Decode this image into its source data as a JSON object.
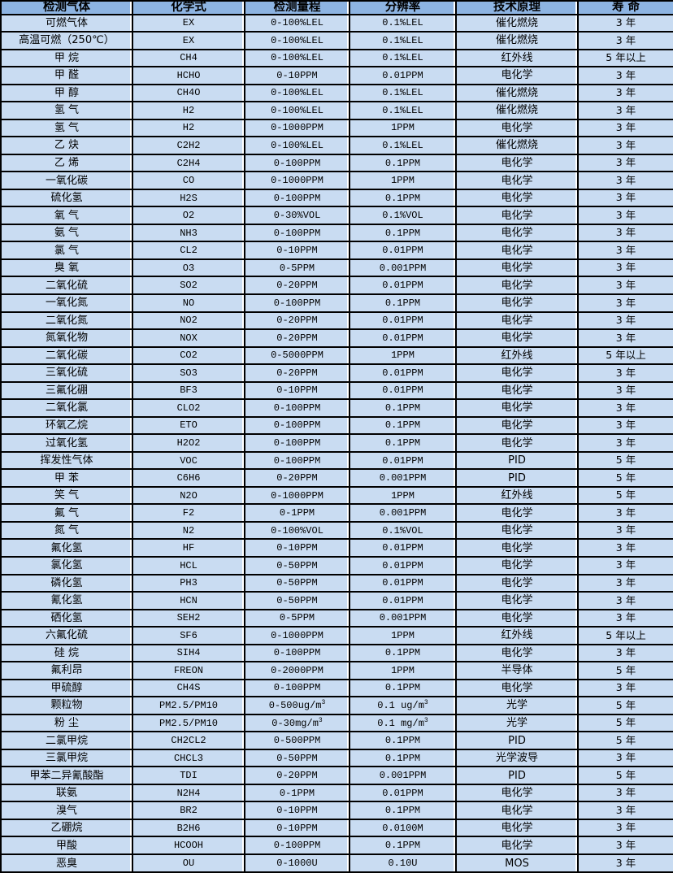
{
  "colors": {
    "header_bg": "#8DB4E2",
    "row_bg": "#C9DCF2",
    "grid_border": "#000000",
    "column_separator": "#FFFFFF",
    "text": "#000000"
  },
  "table": {
    "columns": [
      "检测气体",
      "化学式",
      "检测量程",
      "分辨率",
      "技术原理",
      "寿 命"
    ],
    "column_keys": [
      "gas",
      "formula",
      "range",
      "resolution",
      "principle",
      "lifetime"
    ],
    "rows": [
      [
        "可燃气体",
        "EX",
        "0-100%LEL",
        "0.1%LEL",
        "催化燃烧",
        "3 年"
      ],
      [
        "高温可燃（250℃）",
        "EX",
        "0-100%LEL",
        "0.1%LEL",
        "催化燃烧",
        "3 年"
      ],
      [
        "甲 烷",
        "CH4",
        "0-100%LEL",
        "0.1%LEL",
        "红外线",
        "5 年以上"
      ],
      [
        "甲 醛",
        "HCHO",
        "0-10PPM",
        "0.01PPM",
        "电化学",
        "3 年"
      ],
      [
        "甲 醇",
        "CH4O",
        "0-100%LEL",
        "0.1%LEL",
        "催化燃烧",
        "3 年"
      ],
      [
        "氢 气",
        "H2",
        "0-100%LEL",
        "0.1%LEL",
        "催化燃烧",
        "3 年"
      ],
      [
        "氢 气",
        "H2",
        "0-1000PPM",
        "1PPM",
        "电化学",
        "3 年"
      ],
      [
        "乙 炔",
        "C2H2",
        "0-100%LEL",
        "0.1%LEL",
        "催化燃烧",
        "3 年"
      ],
      [
        "乙 烯",
        "C2H4",
        "0-100PPM",
        "0.1PPM",
        "电化学",
        "3 年"
      ],
      [
        "一氧化碳",
        "CO",
        "0-1000PPM",
        "1PPM",
        "电化学",
        "3 年"
      ],
      [
        "硫化氢",
        "H2S",
        "0-100PPM",
        "0.1PPM",
        "电化学",
        "3 年"
      ],
      [
        "氧 气",
        "O2",
        "0-30%VOL",
        "0.1%VOL",
        "电化学",
        "3 年"
      ],
      [
        "氨 气",
        "NH3",
        "0-100PPM",
        "0.1PPM",
        "电化学",
        "3 年"
      ],
      [
        "氯 气",
        "CL2",
        "0-10PPM",
        "0.01PPM",
        "电化学",
        "3 年"
      ],
      [
        "臭 氧",
        "O3",
        "0-5PPM",
        "0.001PPM",
        "电化学",
        "3 年"
      ],
      [
        "二氧化硫",
        "SO2",
        "0-20PPM",
        "0.01PPM",
        "电化学",
        "3 年"
      ],
      [
        "一氧化氮",
        "NO",
        "0-100PPM",
        "0.1PPM",
        "电化学",
        "3 年"
      ],
      [
        "二氧化氮",
        "NO2",
        "0-20PPM",
        "0.01PPM",
        "电化学",
        "3 年"
      ],
      [
        "氮氧化物",
        "NOX",
        "0-20PPM",
        "0.01PPM",
        "电化学",
        "3 年"
      ],
      [
        "二氧化碳",
        "CO2",
        "0-5000PPM",
        "1PPM",
        "红外线",
        "5 年以上"
      ],
      [
        "三氧化硫",
        "SO3",
        "0-20PPM",
        "0.01PPM",
        "电化学",
        "3 年"
      ],
      [
        "三氟化硼",
        "BF3",
        "0-10PPM",
        "0.01PPM",
        "电化学",
        "3 年"
      ],
      [
        "二氧化氯",
        "CLO2",
        "0-100PPM",
        "0.1PPM",
        "电化学",
        "3 年"
      ],
      [
        "环氧乙烷",
        "ETO",
        "0-100PPM",
        "0.1PPM",
        "电化学",
        "3 年"
      ],
      [
        "过氧化氢",
        "H2O2",
        "0-100PPM",
        "0.1PPM",
        "电化学",
        "3 年"
      ],
      [
        "挥发性气体",
        "VOC",
        "0-100PPM",
        "0.01PPM",
        "PID",
        "5 年"
      ],
      [
        "甲 苯",
        "C6H6",
        "0-20PPM",
        "0.001PPM",
        "PID",
        "5 年"
      ],
      [
        "笑 气",
        "N2O",
        "0-1000PPM",
        "1PPM",
        "红外线",
        "5 年"
      ],
      [
        "氟 气",
        "F2",
        "0-1PPM",
        "0.001PPM",
        "电化学",
        "3 年"
      ],
      [
        "氮 气",
        "N2",
        "0-100%VOL",
        "0.1%VOL",
        "电化学",
        "3 年"
      ],
      [
        "氟化氢",
        "HF",
        "0-10PPM",
        "0.01PPM",
        "电化学",
        "3 年"
      ],
      [
        "氯化氢",
        "HCL",
        "0-50PPM",
        "0.01PPM",
        "电化学",
        "3 年"
      ],
      [
        "磷化氢",
        "PH3",
        "0-50PPM",
        "0.01PPM",
        "电化学",
        "3 年"
      ],
      [
        "氰化氢",
        "HCN",
        "0-50PPM",
        "0.01PPM",
        "电化学",
        "3 年"
      ],
      [
        "硒化氢",
        "SEH2",
        "0-5PPM",
        "0.001PPM",
        "电化学",
        "3 年"
      ],
      [
        "六氟化硫",
        "SF6",
        "0-1000PPM",
        "1PPM",
        "红外线",
        "5 年以上"
      ],
      [
        "硅 烷",
        "SIH4",
        "0-100PPM",
        "0.1PPM",
        "电化学",
        "3 年"
      ],
      [
        "氟利昂",
        "FREON",
        "0-2000PPM",
        "1PPM",
        "半导体",
        "5 年"
      ],
      [
        "甲硫醇",
        "CH4S",
        "0-100PPM",
        "0.1PPM",
        "电化学",
        "3 年"
      ],
      [
        "颗粒物",
        "PM2.5/PM10",
        "0-500ug/m³",
        "0.1 ug/m³",
        "光学",
        "5 年"
      ],
      [
        "粉 尘",
        "PM2.5/PM10",
        "0-30mg/m³",
        "0.1 mg/m³",
        "光学",
        "5 年"
      ],
      [
        "二氯甲烷",
        "CH2CL2",
        "0-500PPM",
        "0.1PPM",
        "PID",
        "5 年"
      ],
      [
        "三氯甲烷",
        "CHCL3",
        "0-50PPM",
        "0.1PPM",
        "光学波导",
        "3 年"
      ],
      [
        "甲苯二异氰酸酯",
        "TDI",
        "0-20PPM",
        "0.001PPM",
        "PID",
        "5 年"
      ],
      [
        "联氨",
        "N2H4",
        "0-1PPM",
        "0.01PPM",
        "电化学",
        "3 年"
      ],
      [
        "溴气",
        "BR2",
        "0-10PPM",
        "0.1PPM",
        "电化学",
        "3 年"
      ],
      [
        "乙硼烷",
        "B2H6",
        "0-10PPM",
        "0.0100M",
        "电化学",
        "3 年"
      ],
      [
        "甲酸",
        "HCOOH",
        "0-100PPM",
        "0.1PPM",
        "电化学",
        "3 年"
      ],
      [
        "恶臭",
        "OU",
        "0-1000U",
        "0.10U",
        "MOS",
        "3 年"
      ]
    ]
  }
}
